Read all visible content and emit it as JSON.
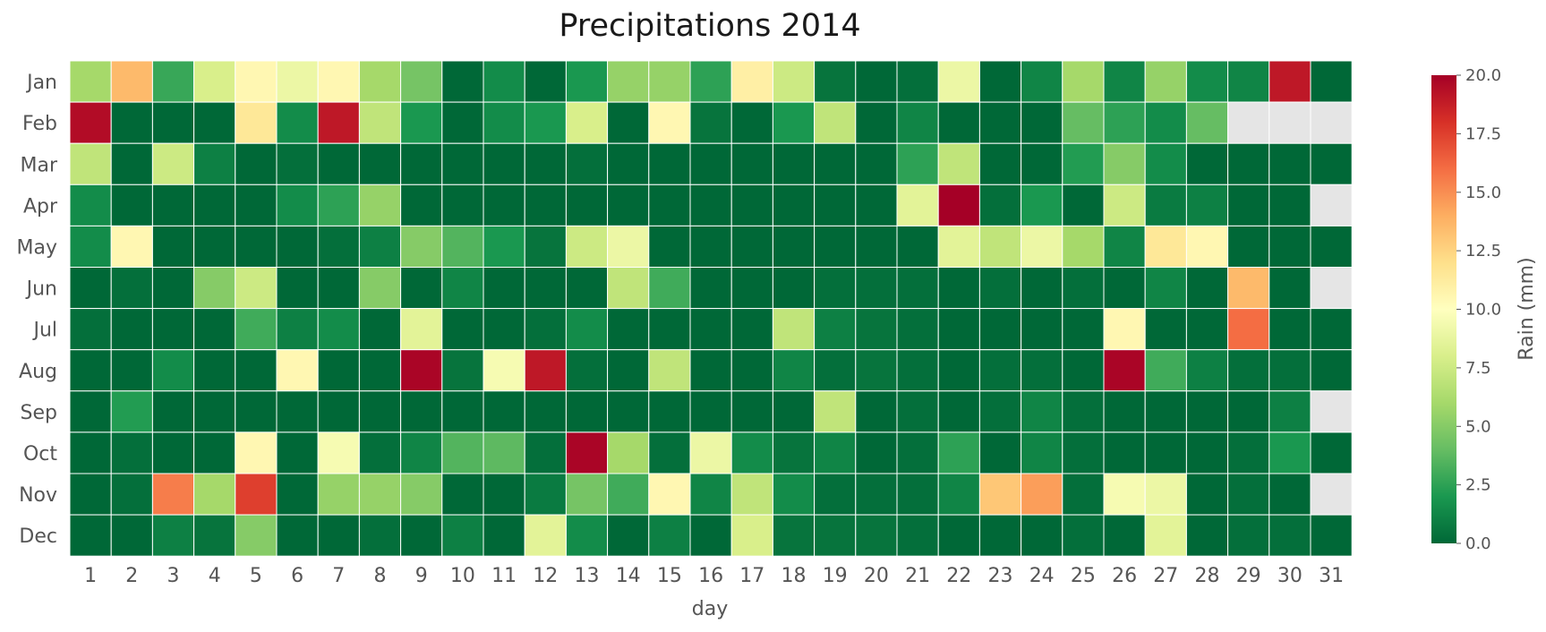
{
  "chart_data": {
    "type": "heatmap",
    "title": "Precipitations 2014",
    "xlabel": "day",
    "ylabel": "",
    "colorbar_label": "Rain (mm)",
    "colormap": "RdYlGn_r",
    "vmin": 0,
    "vmax": 20,
    "missing_color": "#e5e5e5",
    "colorbar_ticks": [
      "0.0",
      "2.5",
      "5.0",
      "7.5",
      "10.0",
      "12.5",
      "15.0",
      "17.5",
      "20.0"
    ],
    "x_categories": [
      "1",
      "2",
      "3",
      "4",
      "5",
      "6",
      "7",
      "8",
      "9",
      "10",
      "11",
      "12",
      "13",
      "14",
      "15",
      "16",
      "17",
      "18",
      "19",
      "20",
      "21",
      "22",
      "23",
      "24",
      "25",
      "26",
      "27",
      "28",
      "29",
      "30",
      "31"
    ],
    "y_categories": [
      "Jan",
      "Feb",
      "Mar",
      "Apr",
      "May",
      "Jun",
      "Jul",
      "Aug",
      "Sep",
      "Oct",
      "Nov",
      "Dec"
    ],
    "values": [
      [
        6,
        13.5,
        2.8,
        8,
        10.5,
        9,
        10.5,
        6,
        4.5,
        0,
        1.5,
        0,
        2,
        5.5,
        5.5,
        2.5,
        11,
        7.5,
        0.5,
        0,
        0.3,
        9,
        0,
        1.2,
        6,
        1.2,
        5.5,
        1.5,
        1.2,
        19,
        0
      ],
      [
        19.5,
        0,
        0,
        0,
        11.5,
        1.5,
        19,
        7,
        2,
        0,
        1.5,
        2,
        8,
        0,
        10.5,
        0.5,
        0,
        2,
        7,
        0,
        1.2,
        0,
        0,
        0,
        4,
        2.5,
        1.5,
        4,
        null,
        null,
        null
      ],
      [
        7,
        0,
        7.5,
        1,
        0,
        0.3,
        0,
        0,
        0,
        0,
        0,
        0,
        0.3,
        0,
        0,
        0,
        0,
        0,
        0,
        0,
        2.5,
        7,
        0,
        0,
        2.2,
        5,
        1.5,
        0,
        0,
        0,
        0
      ],
      [
        1.5,
        0,
        0,
        0,
        0,
        1.5,
        2.5,
        5.5,
        0,
        0,
        0,
        0,
        0,
        0,
        0,
        0,
        0,
        0,
        0,
        0,
        8.5,
        20,
        0.3,
        2,
        0,
        7.5,
        0.8,
        1,
        0,
        0,
        null
      ],
      [
        1.5,
        10.5,
        0,
        0,
        0,
        0,
        0.3,
        1,
        5,
        3.5,
        2,
        0.5,
        7.5,
        9,
        0,
        0,
        0,
        0,
        0,
        0,
        0,
        8.5,
        7,
        9,
        6,
        1.2,
        11.5,
        10.5,
        0,
        0,
        0
      ],
      [
        0,
        0.3,
        0,
        5,
        7.5,
        0,
        0,
        5,
        0,
        1.2,
        0,
        0,
        0,
        7,
        3,
        0,
        0,
        0,
        0.3,
        0.3,
        0.3,
        0,
        0.3,
        0,
        0.3,
        0,
        1.2,
        0,
        13.5,
        0,
        null
      ],
      [
        0.3,
        0,
        0,
        0,
        3,
        1,
        1.5,
        0,
        8.5,
        0,
        0,
        0.3,
        1.5,
        0,
        0,
        0,
        0,
        7,
        1,
        0.5,
        0.3,
        0,
        0,
        0,
        0,
        10.5,
        0,
        0,
        16,
        0,
        0
      ],
      [
        0,
        0,
        1.5,
        0,
        0,
        10.5,
        0,
        0,
        19.8,
        0.5,
        9.5,
        19,
        0.3,
        0,
        7,
        0,
        0,
        1.2,
        0.3,
        0.5,
        0.3,
        0,
        0.3,
        0.3,
        0,
        19.8,
        3,
        1,
        0.3,
        0.3,
        0
      ],
      [
        0,
        2.2,
        0,
        0,
        0,
        0,
        0,
        0,
        0,
        0,
        0,
        0,
        0,
        0,
        0,
        0,
        0,
        0,
        7,
        0,
        0.3,
        0,
        0.3,
        1.2,
        0.3,
        0,
        0,
        0,
        0,
        1,
        null
      ],
      [
        0,
        0.3,
        0,
        0,
        10.5,
        0,
        9.5,
        0.3,
        1.2,
        3.5,
        3.8,
        0.3,
        19.8,
        6,
        0.3,
        9,
        1.5,
        0.5,
        1.2,
        0,
        0.3,
        2.5,
        0,
        1.2,
        0.3,
        0,
        0,
        0,
        0.3,
        2,
        0
      ],
      [
        0,
        0.3,
        15.5,
        6,
        17.5,
        0,
        5.5,
        5.5,
        5,
        0,
        0,
        0.8,
        4.5,
        3,
        10.5,
        1.2,
        7,
        1.5,
        0.3,
        0.3,
        0.3,
        1.2,
        13,
        14.5,
        0.3,
        9.5,
        9,
        0,
        0.3,
        0,
        null
      ],
      [
        0,
        0,
        1,
        0.5,
        5,
        0,
        0,
        0.3,
        0,
        1,
        0,
        8.5,
        1.5,
        0,
        1,
        0,
        8,
        0.5,
        0.5,
        0.5,
        0.3,
        0,
        0,
        0,
        0.3,
        0,
        8.5,
        0,
        0.3,
        0.3,
        0
      ]
    ]
  }
}
